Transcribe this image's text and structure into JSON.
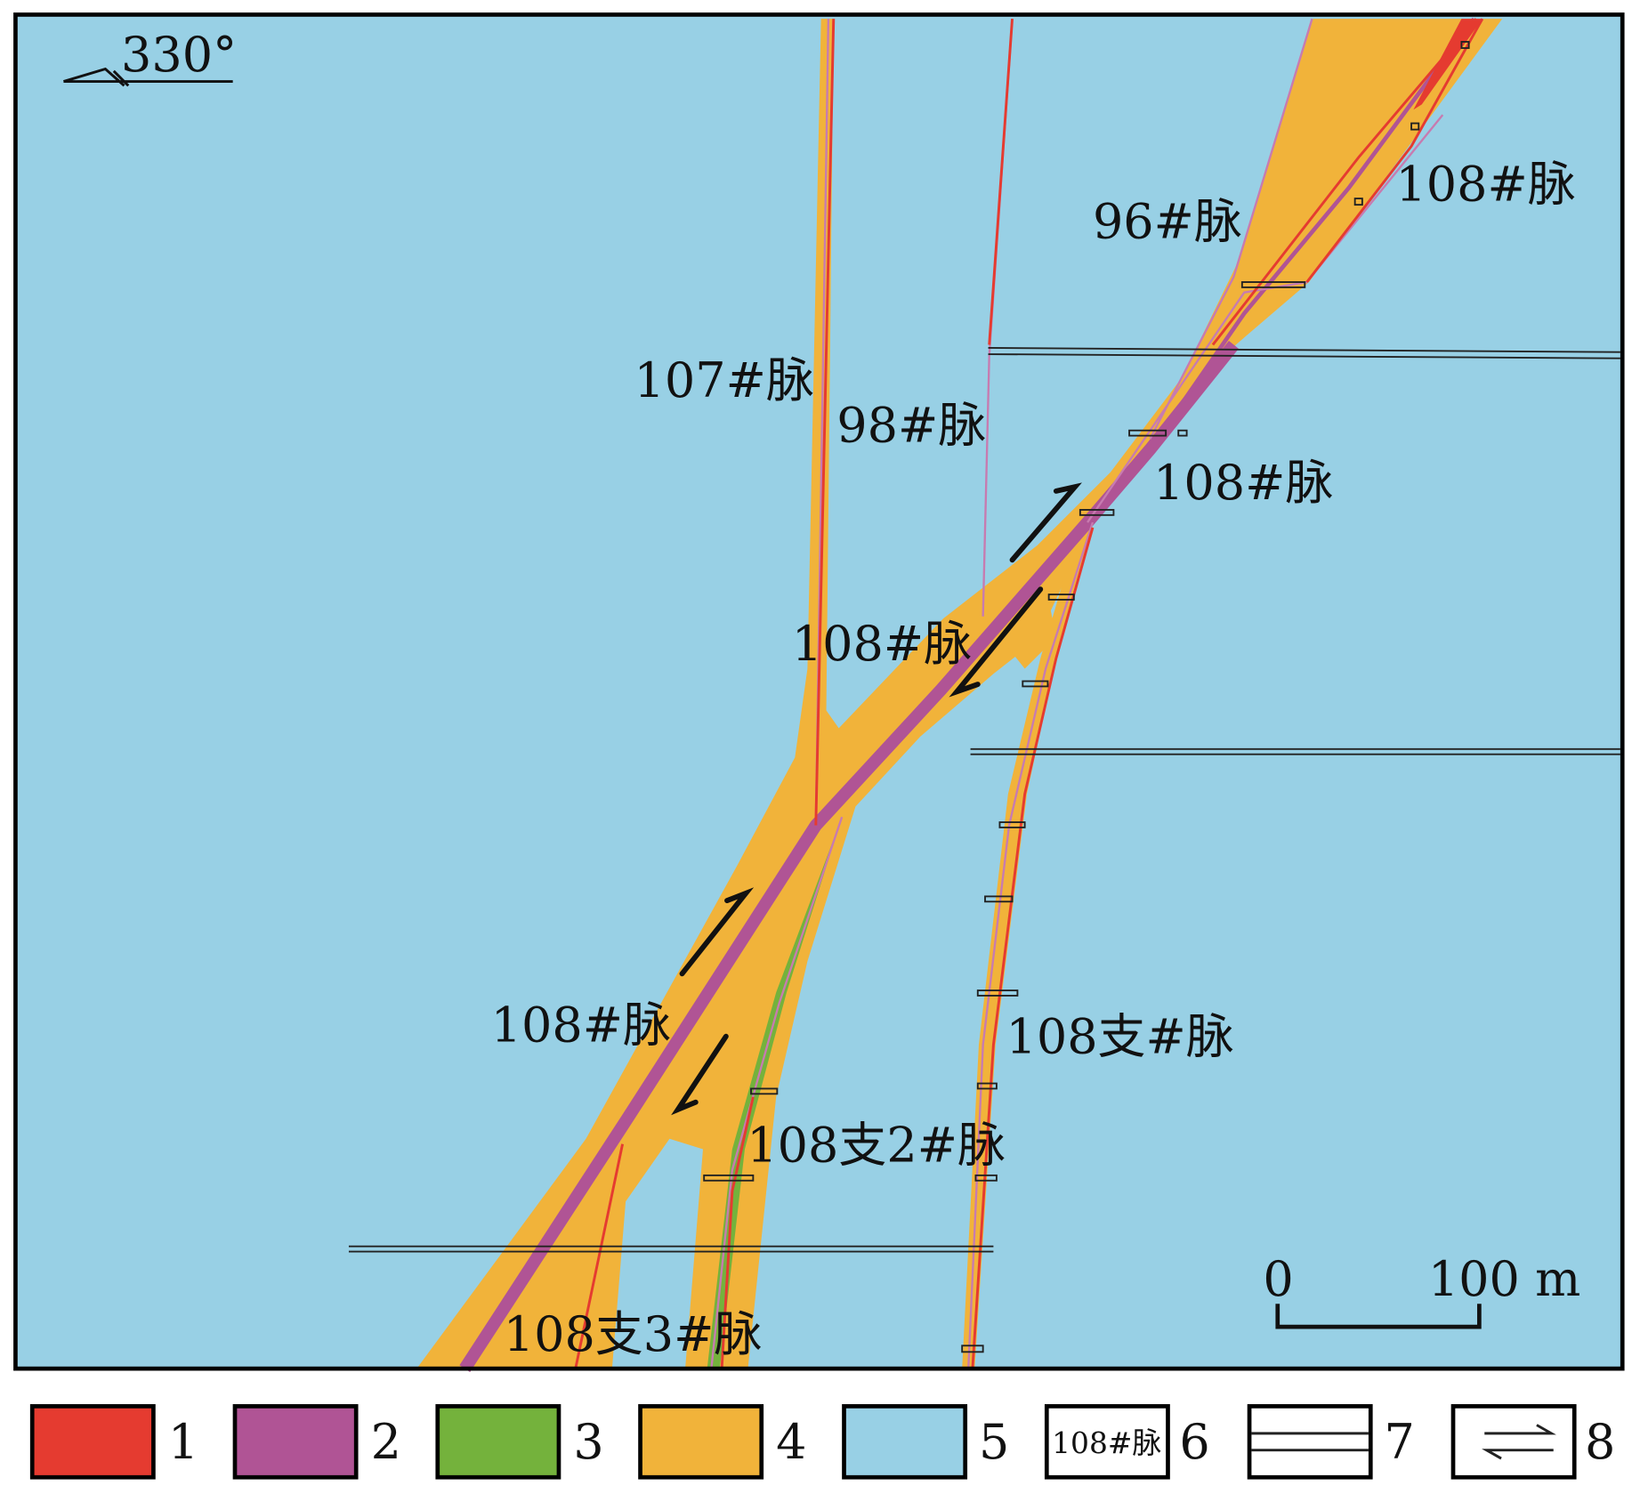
{
  "orientation": {
    "label": "330°"
  },
  "colors": {
    "red": "#e53b30",
    "purple": "#b05495",
    "green": "#74b23c",
    "orange": "#f1b33a",
    "blue": "#98d0e5",
    "frame": "#000000"
  },
  "vein_labels": [
    "107#脉",
    "98#脉",
    "96#脉",
    "108#脉",
    "108#脉",
    "108#脉",
    "108#脉",
    "108支#脉",
    "108支2#脉",
    "108支3#脉"
  ],
  "scale_bar": {
    "start": "0",
    "end": "100 m"
  },
  "legend": [
    {
      "num": "1",
      "swatch": "red"
    },
    {
      "num": "2",
      "swatch": "purple"
    },
    {
      "num": "3",
      "swatch": "green"
    },
    {
      "num": "4",
      "swatch": "orange"
    },
    {
      "num": "5",
      "swatch": "blue"
    },
    {
      "num": "6",
      "swatch": "label",
      "sample": "108#脉"
    },
    {
      "num": "7",
      "swatch": "tunnel"
    },
    {
      "num": "8",
      "swatch": "fault-arrows"
    }
  ]
}
